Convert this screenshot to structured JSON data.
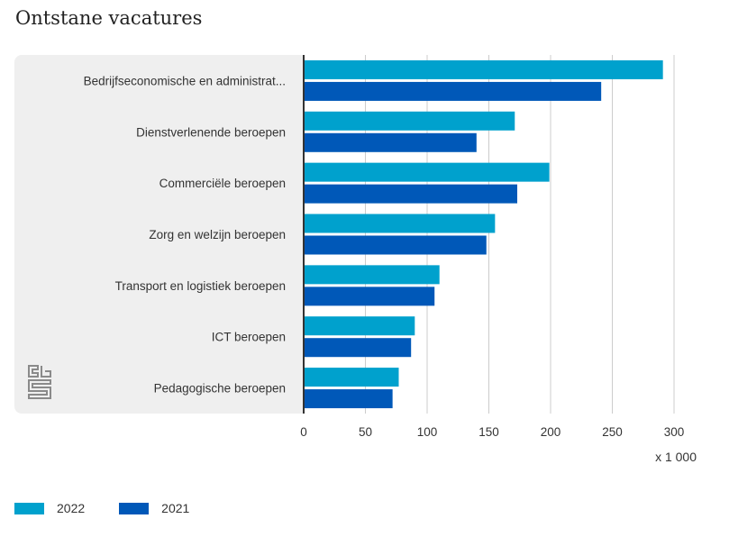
{
  "title": "Ontstane vacatures",
  "unit_label": "x 1 000",
  "colors": {
    "2022": "#00a1cd",
    "2021": "#0058b8",
    "panel": "#efefef",
    "grid": "#cccccc",
    "axis": "#333333"
  },
  "logo_icon": "cbs-logo-icon",
  "chart_data": {
    "type": "bar",
    "orientation": "horizontal",
    "title": "Ontstane vacatures",
    "xlabel": "x 1 000",
    "ylabel": "",
    "xlim": [
      0,
      300
    ],
    "x_ticks": [
      0,
      50,
      100,
      150,
      200,
      250,
      300
    ],
    "grid": true,
    "legend_position": "bottom-left",
    "categories": [
      "Bedrijfseconomische en administrat...",
      "Dienstverlenende beroepen",
      "Commerciële beroepen",
      "Zorg en welzijn beroepen",
      "Transport en logistiek beroepen",
      "ICT beroepen",
      "Pedagogische beroepen"
    ],
    "series": [
      {
        "name": "2022",
        "color": "#00a1cd",
        "values": [
          291,
          171,
          199,
          155,
          110,
          90,
          77
        ]
      },
      {
        "name": "2021",
        "color": "#0058b8",
        "values": [
          241,
          140,
          173,
          148,
          106,
          87,
          72
        ]
      }
    ]
  }
}
